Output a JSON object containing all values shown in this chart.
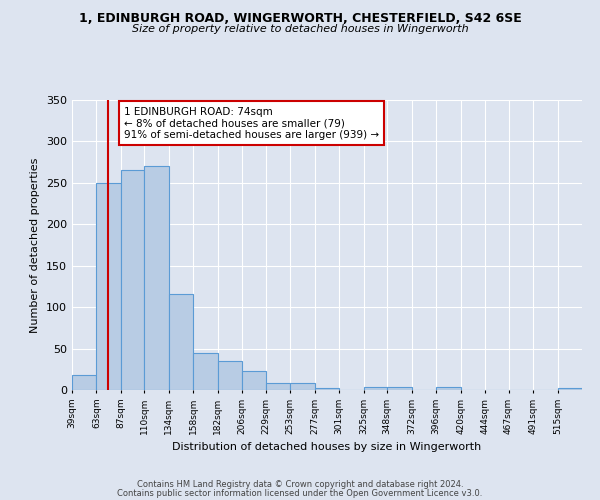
{
  "title1": "1, EDINBURGH ROAD, WINGERWORTH, CHESTERFIELD, S42 6SE",
  "title2": "Size of property relative to detached houses in Wingerworth",
  "xlabel": "Distribution of detached houses by size in Wingerworth",
  "ylabel": "Number of detached properties",
  "bin_labels": [
    "39sqm",
    "63sqm",
    "87sqm",
    "110sqm",
    "134sqm",
    "158sqm",
    "182sqm",
    "206sqm",
    "229sqm",
    "253sqm",
    "277sqm",
    "301sqm",
    "325sqm",
    "348sqm",
    "372sqm",
    "396sqm",
    "420sqm",
    "444sqm",
    "467sqm",
    "491sqm",
    "515sqm"
  ],
  "bar_values": [
    18,
    250,
    266,
    270,
    116,
    45,
    35,
    23,
    9,
    9,
    2,
    0,
    4,
    4,
    0,
    4,
    0,
    0,
    0,
    0,
    3
  ],
  "bar_color": "#b8cce4",
  "bar_edge_color": "#5b9bd5",
  "property_line_x": 74,
  "bin_edges": [
    39,
    63,
    87,
    110,
    134,
    158,
    182,
    206,
    229,
    253,
    277,
    301,
    325,
    348,
    372,
    396,
    420,
    444,
    467,
    491,
    515,
    539
  ],
  "annotation_text": "1 EDINBURGH ROAD: 74sqm\n← 8% of detached houses are smaller (79)\n91% of semi-detached houses are larger (939) →",
  "annotation_box_color": "#ffffff",
  "annotation_box_edge": "#cc0000",
  "red_line_color": "#cc0000",
  "ylim": [
    0,
    350
  ],
  "yticks": [
    0,
    50,
    100,
    150,
    200,
    250,
    300,
    350
  ],
  "footer1": "Contains HM Land Registry data © Crown copyright and database right 2024.",
  "footer2": "Contains public sector information licensed under the Open Government Licence v3.0.",
  "bg_color": "#dde4f0",
  "plot_bg_color": "#dde4f0",
  "grid_color": "#ffffff"
}
